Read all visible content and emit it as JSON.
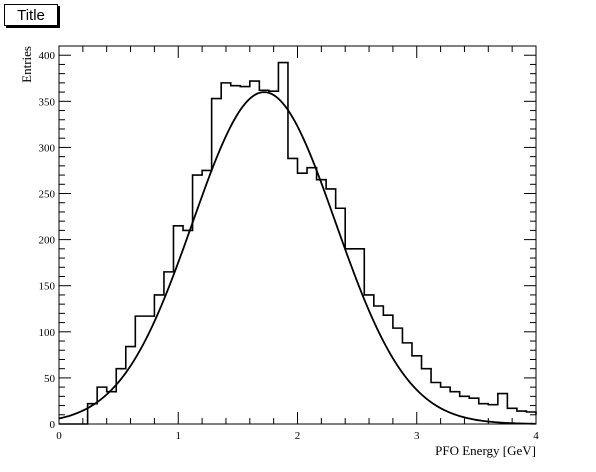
{
  "title_box": {
    "label": "Title"
  },
  "chart_data": {
    "type": "bar",
    "title": "Title",
    "xlabel": "PFO Energy [GeV]",
    "ylabel": "Entries",
    "xlim": [
      0,
      4
    ],
    "ylim": [
      0,
      410
    ],
    "x_ticks": [
      "0",
      "1",
      "2",
      "3",
      "4"
    ],
    "y_ticks": [
      "0",
      "50",
      "100",
      "150",
      "200",
      "250",
      "300",
      "350",
      "400"
    ],
    "bin_width": 0.08,
    "bin_edges_start": 0.0,
    "series": [
      {
        "style": "histogram",
        "values": [
          0,
          0,
          0,
          22,
          40,
          35,
          60,
          84,
          117,
          117,
          140,
          165,
          215,
          210,
          270,
          275,
          353,
          370,
          367,
          366,
          372,
          362,
          361,
          392,
          288,
          272,
          278,
          265,
          255,
          234,
          190,
          190,
          140,
          128,
          118,
          104,
          88,
          74,
          60,
          45,
          40,
          35,
          30,
          28,
          22,
          21,
          33,
          17,
          14,
          13,
          10
        ]
      },
      {
        "style": "fit-curve",
        "mean": 1.72,
        "sigma": 0.6,
        "amplitude": 360
      }
    ]
  }
}
